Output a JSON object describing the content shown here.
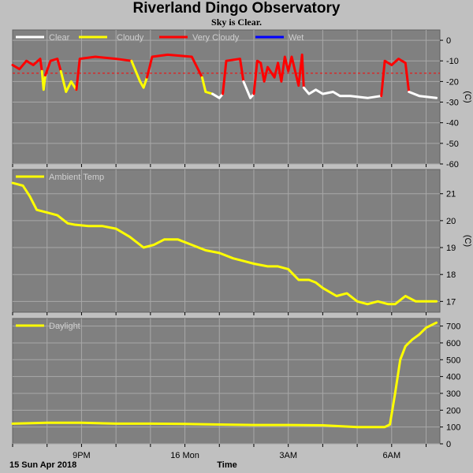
{
  "title": "Riverland Dingo Observatory",
  "subtitle": "Sky is Clear.",
  "footer": {
    "date_label": "15 Sun Apr 2018",
    "x_axis_title": "Time"
  },
  "colors": {
    "plot_bg": "#808080",
    "page_bg": "#c0c0c0",
    "grid": "#a8a8a8",
    "clear": "#ffffff",
    "cloudy": "#ffff00",
    "very_cloudy": "#ff0000",
    "wet": "#0000ff",
    "threshold": "#ff0000"
  },
  "chart_data": [
    {
      "type": "line",
      "title": "",
      "ylabel": "(C)",
      "ylim": [
        -60,
        5
      ],
      "yticks": [
        "0",
        "-10",
        "-20",
        "-30",
        "-40",
        "-50",
        "-60"
      ],
      "xlim": [
        0,
        12.4
      ],
      "x_tick_labels": [
        {
          "x": 2.0,
          "label": "9PM"
        },
        {
          "x": 5.0,
          "label": "16 Mon"
        },
        {
          "x": 8.0,
          "label": "3AM"
        },
        {
          "x": 11.0,
          "label": "6AM"
        }
      ],
      "legend": [
        "Clear",
        "Cloudy",
        "Very Cloudy",
        "Wet"
      ],
      "threshold": -16,
      "series": [
        {
          "name": "Very Cloudy",
          "color": "#ff0000",
          "x": [
            0.0,
            0.2,
            0.4,
            0.6,
            0.8,
            0.85
          ],
          "y": [
            -12,
            -14,
            -10,
            -12,
            -9,
            -15
          ]
        },
        {
          "name": "Cloudy",
          "color": "#ffff00",
          "x": [
            0.85,
            0.9,
            0.95
          ],
          "y": [
            -15,
            -24,
            -17
          ]
        },
        {
          "name": "Very Cloudy",
          "color": "#ff0000",
          "x": [
            0.95,
            1.1,
            1.3,
            1.4
          ],
          "y": [
            -17,
            -10,
            -9,
            -15
          ]
        },
        {
          "name": "Cloudy",
          "color": "#ffff00",
          "x": [
            1.4,
            1.55,
            1.7,
            1.85
          ],
          "y": [
            -15,
            -25,
            -20,
            -24
          ]
        },
        {
          "name": "Very Cloudy",
          "color": "#ff0000",
          "x": [
            1.85,
            1.95,
            2.4,
            3.0,
            3.45
          ],
          "y": [
            -24,
            -9,
            -8,
            -9,
            -10
          ]
        },
        {
          "name": "Cloudy",
          "color": "#ffff00",
          "x": [
            3.45,
            3.7,
            3.8,
            3.9
          ],
          "y": [
            -10,
            -20,
            -23,
            -18
          ]
        },
        {
          "name": "Very Cloudy",
          "color": "#ff0000",
          "x": [
            3.9,
            4.05,
            4.5,
            5.2,
            5.5
          ],
          "y": [
            -18,
            -8,
            -7,
            -8,
            -18
          ]
        },
        {
          "name": "Cloudy",
          "color": "#ffff00",
          "x": [
            5.5,
            5.6,
            5.8
          ],
          "y": [
            -18,
            -25,
            -26
          ]
        },
        {
          "name": "Clear",
          "color": "#ffffff",
          "x": [
            5.8,
            6.0,
            6.1
          ],
          "y": [
            -26,
            -28,
            -26
          ]
        },
        {
          "name": "Very Cloudy",
          "color": "#ff0000",
          "x": [
            6.1,
            6.2,
            6.6,
            6.7
          ],
          "y": [
            -26,
            -10,
            -9,
            -20
          ]
        },
        {
          "name": "Clear",
          "color": "#ffffff",
          "x": [
            6.7,
            6.9,
            7.0
          ],
          "y": [
            -20,
            -28,
            -26
          ]
        },
        {
          "name": "Very Cloudy",
          "color": "#ff0000",
          "x": [
            7.0,
            7.1,
            7.2,
            7.3,
            7.4,
            7.6,
            7.7,
            7.8,
            7.9,
            8.0,
            8.1,
            8.3,
            8.4,
            8.45
          ],
          "y": [
            -26,
            -10,
            -11,
            -20,
            -13,
            -18,
            -11,
            -20,
            -8,
            -15,
            -8,
            -22,
            -7,
            -23
          ]
        },
        {
          "name": "Clear",
          "color": "#ffffff",
          "x": [
            8.45,
            8.6,
            8.8,
            9.0,
            9.3,
            9.5,
            9.8,
            10.3,
            10.7
          ],
          "y": [
            -23,
            -26,
            -24,
            -26,
            -25,
            -27,
            -27,
            -28,
            -27
          ]
        },
        {
          "name": "Very Cloudy",
          "color": "#ff0000",
          "x": [
            10.7,
            10.8,
            11.0,
            11.2,
            11.4,
            11.5
          ],
          "y": [
            -27,
            -10,
            -12,
            -9,
            -11,
            -25
          ]
        },
        {
          "name": "Clear",
          "color": "#ffffff",
          "x": [
            11.5,
            11.8,
            12.3
          ],
          "y": [
            -25,
            -27,
            -28
          ]
        }
      ]
    },
    {
      "type": "line",
      "title": "",
      "ylabel": "(C)",
      "ylim": [
        16.6,
        21.9
      ],
      "yticks": [
        "21",
        "20",
        "19",
        "18",
        "17"
      ],
      "xlim": [
        0,
        12.4
      ],
      "legend": [
        "Ambient Temp"
      ],
      "series": [
        {
          "name": "Ambient Temp",
          "color": "#ffff00",
          "x": [
            0.0,
            0.3,
            0.5,
            0.7,
            1.0,
            1.3,
            1.6,
            1.8,
            2.2,
            2.6,
            3.0,
            3.4,
            3.8,
            4.1,
            4.4,
            4.8,
            5.2,
            5.6,
            6.0,
            6.4,
            6.7,
            7.0,
            7.4,
            7.7,
            8.0,
            8.3,
            8.6,
            8.8,
            9.0,
            9.4,
            9.7,
            10.0,
            10.3,
            10.6,
            10.9,
            11.1,
            11.4,
            11.7,
            12.0,
            12.3
          ],
          "y": [
            21.4,
            21.3,
            20.9,
            20.4,
            20.3,
            20.2,
            19.9,
            19.85,
            19.8,
            19.8,
            19.7,
            19.4,
            19.0,
            19.1,
            19.3,
            19.3,
            19.1,
            18.9,
            18.8,
            18.6,
            18.5,
            18.4,
            18.3,
            18.3,
            18.2,
            17.8,
            17.8,
            17.7,
            17.5,
            17.2,
            17.3,
            17.0,
            16.9,
            17.0,
            16.9,
            16.9,
            17.2,
            17.0,
            17.0,
            17.0
          ]
        }
      ]
    },
    {
      "type": "line",
      "title": "",
      "ylim": [
        0,
        745
      ],
      "yticks": [
        "700",
        "600",
        "500",
        "400",
        "300",
        "200",
        "100",
        "0"
      ],
      "xlim": [
        0,
        12.4
      ],
      "legend": [
        "Daylight"
      ],
      "series": [
        {
          "name": "Daylight",
          "color": "#ffff00",
          "x": [
            0.0,
            1.0,
            2.0,
            3.0,
            4.0,
            5.0,
            6.0,
            7.0,
            8.0,
            9.0,
            9.5,
            10.0,
            10.8,
            10.95,
            11.1,
            11.25,
            11.4,
            11.6,
            11.8,
            12.0,
            12.3
          ],
          "y": [
            120,
            125,
            125,
            120,
            120,
            118,
            115,
            112,
            112,
            110,
            105,
            100,
            100,
            115,
            300,
            500,
            580,
            620,
            650,
            690,
            720
          ]
        }
      ]
    }
  ]
}
